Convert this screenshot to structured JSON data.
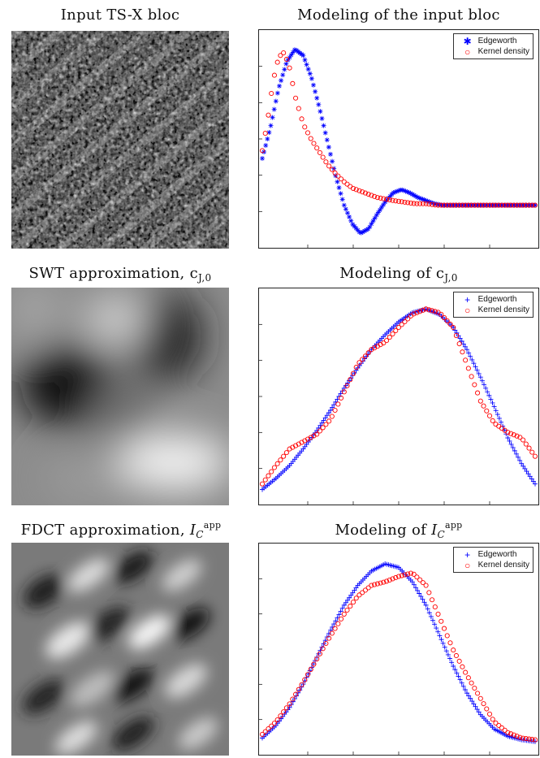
{
  "titles": {
    "r1_left": "Input TS-X bloc",
    "r1_right": "Modeling of the input bloc",
    "r2_left_prefix": "SWT approximation, c",
    "r2_left_sub": "J,0",
    "r2_right_prefix": "Modeling of c",
    "r2_right_sub": "J,0",
    "r3_left_prefix": "FDCT approximation, ",
    "r3_left_symbol": "I",
    "r3_left_sub": "C",
    "r3_left_sup": "app",
    "r3_right_prefix": "Modeling of ",
    "r3_right_symbol": "I",
    "r3_right_sub": "C",
    "r3_right_sup": "app"
  },
  "legend": {
    "edgeworth": "Edgeworth",
    "kernel": "Kernel density",
    "edgeworth_color": "#0000ff",
    "kernel_color": "#ff0000"
  },
  "chart_data": [
    {
      "type": "scatter",
      "title": "Modeling of the input bloc",
      "xlim": [
        0,
        1
      ],
      "ylim": [
        -0.2,
        1.05
      ],
      "legend_position": "top-right",
      "grid": false,
      "series": [
        {
          "name": "Edgeworth",
          "marker": "asterisk",
          "color": "#0000ff",
          "x": [
            0.0,
            0.03,
            0.06,
            0.09,
            0.12,
            0.15,
            0.18,
            0.21,
            0.24,
            0.27,
            0.3,
            0.33,
            0.36,
            0.39,
            0.42,
            0.45,
            0.48,
            0.51,
            0.54,
            0.57,
            0.6,
            0.63,
            0.66,
            0.7,
            0.78,
            0.95,
            1.0
          ],
          "y": [
            0.3,
            0.5,
            0.75,
            0.92,
            1.0,
            0.96,
            0.82,
            0.62,
            0.4,
            0.18,
            0.0,
            -0.12,
            -0.18,
            -0.15,
            -0.06,
            0.02,
            0.08,
            0.1,
            0.08,
            0.05,
            0.03,
            0.01,
            0.0,
            0.0,
            0.0,
            0.0,
            0.0
          ]
        },
        {
          "name": "Kernel density",
          "marker": "circle",
          "color": "#ff0000",
          "x": [
            0.0,
            0.02,
            0.04,
            0.06,
            0.08,
            0.1,
            0.12,
            0.15,
            0.18,
            0.21,
            0.24,
            0.27,
            0.3,
            0.33,
            0.36,
            0.39,
            0.42,
            0.45,
            0.48,
            0.52,
            0.56,
            0.6,
            0.64,
            0.7,
            0.78,
            0.95,
            1.0
          ],
          "y": [
            0.35,
            0.55,
            0.8,
            0.95,
            0.98,
            0.88,
            0.7,
            0.52,
            0.42,
            0.34,
            0.26,
            0.2,
            0.15,
            0.11,
            0.09,
            0.07,
            0.05,
            0.04,
            0.03,
            0.02,
            0.01,
            0.01,
            0.0,
            0.0,
            0.0,
            0.0,
            0.0
          ]
        }
      ]
    },
    {
      "type": "scatter",
      "title": "Modeling of c_{J,0}",
      "xlim": [
        0,
        1
      ],
      "ylim": [
        0,
        1.05
      ],
      "legend_position": "top-right",
      "grid": false,
      "series": [
        {
          "name": "Edgeworth",
          "marker": "plus",
          "color": "#0000ff",
          "x": [
            0.0,
            0.05,
            0.1,
            0.15,
            0.2,
            0.25,
            0.3,
            0.35,
            0.4,
            0.45,
            0.5,
            0.55,
            0.6,
            0.65,
            0.7,
            0.75,
            0.8,
            0.85,
            0.9,
            0.95,
            1.0
          ],
          "y": [
            0.02,
            0.08,
            0.15,
            0.24,
            0.34,
            0.45,
            0.57,
            0.68,
            0.78,
            0.86,
            0.93,
            0.98,
            1.0,
            0.97,
            0.9,
            0.78,
            0.63,
            0.47,
            0.3,
            0.16,
            0.05
          ]
        },
        {
          "name": "Kernel density",
          "marker": "circle",
          "color": "#ff0000",
          "x": [
            0.0,
            0.05,
            0.1,
            0.15,
            0.2,
            0.25,
            0.3,
            0.35,
            0.4,
            0.45,
            0.5,
            0.55,
            0.6,
            0.65,
            0.7,
            0.75,
            0.8,
            0.85,
            0.9,
            0.95,
            1.0
          ],
          "y": [
            0.05,
            0.15,
            0.24,
            0.28,
            0.32,
            0.4,
            0.55,
            0.7,
            0.78,
            0.82,
            0.9,
            0.97,
            1.0,
            0.98,
            0.9,
            0.7,
            0.5,
            0.38,
            0.33,
            0.3,
            0.2
          ]
        }
      ]
    },
    {
      "type": "scatter",
      "title": "Modeling of I_C^app",
      "xlim": [
        0,
        1
      ],
      "ylim": [
        0,
        1.05
      ],
      "legend_position": "top-right",
      "grid": false,
      "series": [
        {
          "name": "Edgeworth",
          "marker": "plus",
          "color": "#0000ff",
          "x": [
            0.0,
            0.05,
            0.1,
            0.15,
            0.2,
            0.25,
            0.3,
            0.35,
            0.4,
            0.45,
            0.5,
            0.55,
            0.6,
            0.65,
            0.7,
            0.75,
            0.8,
            0.85,
            0.9,
            0.95,
            1.0
          ],
          "y": [
            0.03,
            0.1,
            0.2,
            0.33,
            0.48,
            0.63,
            0.77,
            0.88,
            0.96,
            1.0,
            0.98,
            0.9,
            0.77,
            0.6,
            0.43,
            0.28,
            0.16,
            0.08,
            0.04,
            0.02,
            0.01
          ]
        },
        {
          "name": "Kernel density",
          "marker": "circle",
          "color": "#ff0000",
          "x": [
            0.0,
            0.05,
            0.1,
            0.15,
            0.2,
            0.25,
            0.3,
            0.35,
            0.4,
            0.45,
            0.5,
            0.55,
            0.6,
            0.65,
            0.7,
            0.75,
            0.8,
            0.85,
            0.9,
            0.95,
            1.0
          ],
          "y": [
            0.05,
            0.12,
            0.22,
            0.34,
            0.47,
            0.6,
            0.72,
            0.82,
            0.88,
            0.9,
            0.93,
            0.95,
            0.88,
            0.7,
            0.52,
            0.38,
            0.25,
            0.12,
            0.06,
            0.03,
            0.02
          ]
        }
      ]
    }
  ]
}
